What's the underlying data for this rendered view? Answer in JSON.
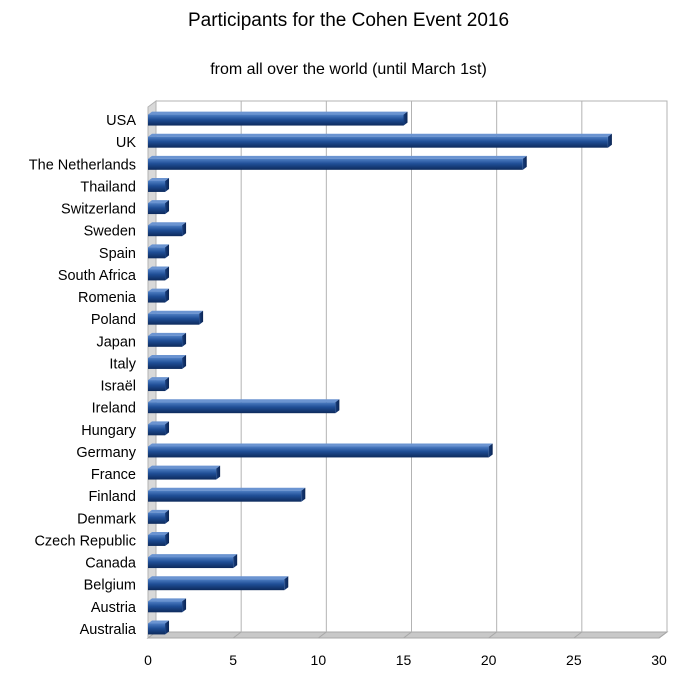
{
  "chart_data": {
    "type": "bar",
    "orientation": "horizontal",
    "title": "Participants for the Cohen Event 2016",
    "subtitle": "from all over the world  (until March 1st)",
    "xlabel": "",
    "ylabel": "",
    "xlim": [
      0,
      30
    ],
    "xticks": [
      "0",
      "5",
      "10",
      "15",
      "20",
      "25",
      "30"
    ],
    "grid": true,
    "legend": "none",
    "bar_color": "#1f4e96",
    "categories": [
      "USA",
      "UK",
      "The Netherlands",
      "Thailand",
      "Switzerland",
      "Sweden",
      "Spain",
      "South Africa",
      "Romenia",
      "Poland",
      "Japan",
      "Italy",
      "Israël",
      "Ireland",
      "Hungary",
      "Germany",
      "France",
      "Finland",
      "Denmark",
      "Czech Republic",
      "Canada",
      "Belgium",
      "Austria",
      "Australia"
    ],
    "values": [
      15,
      27,
      22,
      1,
      1,
      2,
      1,
      1,
      1,
      3,
      2,
      2,
      1,
      11,
      1,
      20,
      4,
      9,
      1,
      1,
      5,
      8,
      2,
      1
    ]
  }
}
